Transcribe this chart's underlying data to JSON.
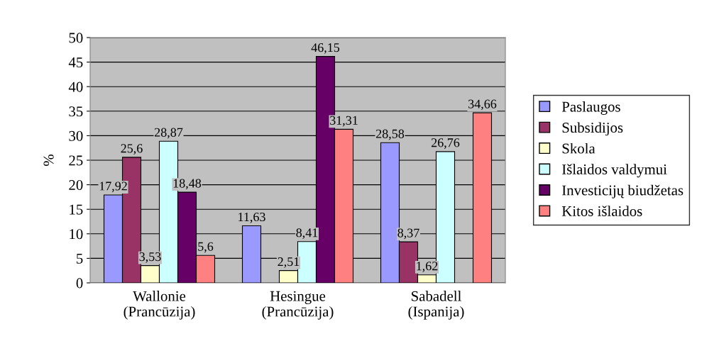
{
  "chart_data": {
    "type": "bar",
    "ylabel": "%",
    "categories": [
      "Wallonie\n(Prancūzija)",
      "Hesingue\n(Prancūzija)",
      "Sabadell\n(Ispanija)"
    ],
    "series": [
      {
        "name": "Paslaugos",
        "color": "#9999ff",
        "values": [
          17.92,
          11.63,
          28.58
        ],
        "value_labels": [
          "17,92",
          "11,63",
          "28,58"
        ]
      },
      {
        "name": "Subsidijos",
        "color": "#993366",
        "values": [
          25.6,
          null,
          8.37
        ],
        "value_labels": [
          "25,6",
          null,
          "8,37"
        ]
      },
      {
        "name": "Skola",
        "color": "#ffffcc",
        "values": [
          3.53,
          2.51,
          1.62
        ],
        "value_labels": [
          "3,53",
          "2,51",
          "1,62"
        ]
      },
      {
        "name": "Išlaidos valdymui",
        "color": "#ccffff",
        "values": [
          28.87,
          8.41,
          26.76
        ],
        "value_labels": [
          "28,87",
          "8,41",
          "26,76"
        ]
      },
      {
        "name": "Investicijų biudžetas",
        "color": "#660066",
        "values": [
          18.48,
          46.15,
          null
        ],
        "value_labels": [
          "18,48",
          "46,15",
          null
        ]
      },
      {
        "name": "Kitos išlaidos",
        "color": "#ff8080",
        "values": [
          5.6,
          31.31,
          34.66
        ],
        "value_labels": [
          "5,6",
          "31,31",
          "34,66"
        ]
      }
    ],
    "ylim": [
      0,
      50
    ],
    "yticks": [
      0,
      5,
      10,
      15,
      20,
      25,
      30,
      35,
      40,
      45,
      50
    ],
    "grid": "y",
    "legend": "right"
  }
}
